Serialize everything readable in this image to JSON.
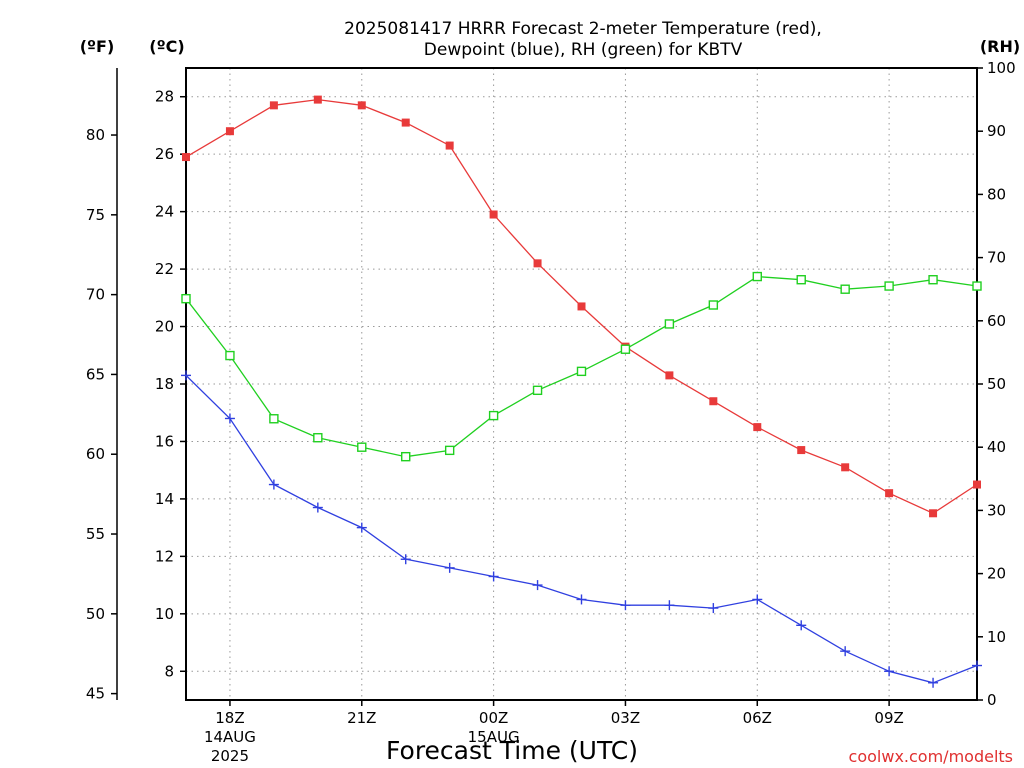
{
  "chart_data": {
    "type": "line",
    "title": [
      "2025081417 HRRR Forecast 2-meter Temperature (red),",
      "Dewpoint (blue), RH (green) for KBTV"
    ],
    "xlabel": "Forecast Time (UTC)",
    "y_units": {
      "fahrenheit": "(ºF)",
      "celsius": "(ºC)",
      "rh": "(RH)"
    },
    "x": [
      "17Z",
      "18Z",
      "19Z",
      "20Z",
      "21Z",
      "22Z",
      "23Z",
      "00Z",
      "01Z",
      "02Z",
      "03Z",
      "04Z",
      "05Z",
      "06Z",
      "07Z",
      "08Z",
      "09Z",
      "10Z",
      "11Z"
    ],
    "xticks": [
      {
        "label": "18Z",
        "sub": [
          "14AUG",
          "2025"
        ]
      },
      {
        "label": "21Z",
        "sub": []
      },
      {
        "label": "00Z",
        "sub": [
          "15AUG"
        ]
      },
      {
        "label": "03Z",
        "sub": []
      },
      {
        "label": "06Z",
        "sub": []
      },
      {
        "label": "09Z",
        "sub": []
      }
    ],
    "celsius_axis": {
      "range": [
        7.0,
        29.0
      ],
      "ticks": [
        8,
        10,
        12,
        14,
        16,
        18,
        20,
        22,
        24,
        26,
        28
      ]
    },
    "fahrenheit_axis": {
      "range": [
        44.6,
        84.2
      ],
      "ticks": [
        45,
        50,
        55,
        60,
        65,
        70,
        75,
        80
      ]
    },
    "rh_axis": {
      "range": [
        0,
        100
      ],
      "ticks": [
        0,
        10,
        20,
        30,
        40,
        50,
        60,
        70,
        80,
        90,
        100
      ]
    },
    "grid": true,
    "series": [
      {
        "key": "temperature",
        "axis": "celsius",
        "color": "#e83a3a",
        "marker": "filled-square",
        "values": [
          25.9,
          26.8,
          27.7,
          27.9,
          27.7,
          27.1,
          26.3,
          23.9,
          22.2,
          20.7,
          19.3,
          18.3,
          17.4,
          16.5,
          15.7,
          15.1,
          14.2,
          13.5,
          14.5
        ]
      },
      {
        "key": "dewpoint",
        "axis": "celsius",
        "color": "#3040e0",
        "marker": "plus",
        "values": [
          18.3,
          16.8,
          14.5,
          13.7,
          13.0,
          11.9,
          11.6,
          11.3,
          11.0,
          10.5,
          10.3,
          10.3,
          10.2,
          10.5,
          9.6,
          8.7,
          8.0,
          7.6,
          8.2
        ]
      },
      {
        "key": "rh",
        "axis": "rh",
        "color": "#20d020",
        "marker": "open-square",
        "values": [
          63.5,
          54.5,
          44.5,
          41.5,
          40.0,
          38.5,
          39.5,
          45.0,
          49.0,
          52.0,
          55.5,
          59.5,
          62.5,
          67.0,
          66.5,
          65.0,
          65.5,
          66.5,
          65.5
        ]
      }
    ]
  },
  "credit": "coolwx.com/modelts"
}
